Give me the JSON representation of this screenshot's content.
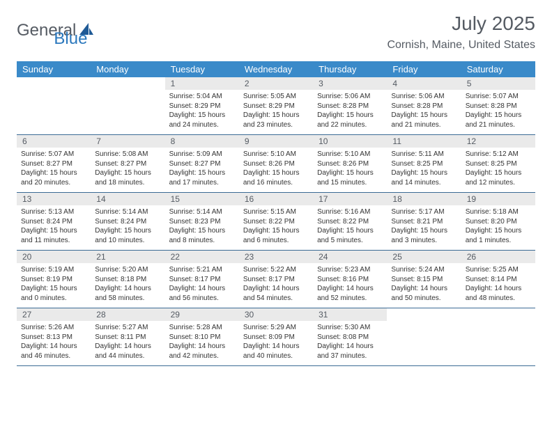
{
  "logo": {
    "text_general": "General",
    "text_blue": "Blue",
    "gray_color": "#555b63",
    "blue_color": "#2b78bd",
    "shape_color": "#1f5a96"
  },
  "title": "July 2025",
  "location": "Cornish, Maine, United States",
  "colors": {
    "header_bg": "#3a8ac9",
    "header_text": "#ffffff",
    "daynum_bg": "#eaeaea",
    "daynum_text": "#555b63",
    "row_border": "#3a6a94",
    "body_text": "#333333"
  },
  "weekdays": [
    "Sunday",
    "Monday",
    "Tuesday",
    "Wednesday",
    "Thursday",
    "Friday",
    "Saturday"
  ],
  "weeks": [
    [
      null,
      null,
      {
        "n": "1",
        "sr": "5:04 AM",
        "ss": "8:29 PM",
        "dh": "15",
        "dm": "24"
      },
      {
        "n": "2",
        "sr": "5:05 AM",
        "ss": "8:29 PM",
        "dh": "15",
        "dm": "23"
      },
      {
        "n": "3",
        "sr": "5:06 AM",
        "ss": "8:28 PM",
        "dh": "15",
        "dm": "22"
      },
      {
        "n": "4",
        "sr": "5:06 AM",
        "ss": "8:28 PM",
        "dh": "15",
        "dm": "21"
      },
      {
        "n": "5",
        "sr": "5:07 AM",
        "ss": "8:28 PM",
        "dh": "15",
        "dm": "21"
      }
    ],
    [
      {
        "n": "6",
        "sr": "5:07 AM",
        "ss": "8:27 PM",
        "dh": "15",
        "dm": "20"
      },
      {
        "n": "7",
        "sr": "5:08 AM",
        "ss": "8:27 PM",
        "dh": "15",
        "dm": "18"
      },
      {
        "n": "8",
        "sr": "5:09 AM",
        "ss": "8:27 PM",
        "dh": "15",
        "dm": "17"
      },
      {
        "n": "9",
        "sr": "5:10 AM",
        "ss": "8:26 PM",
        "dh": "15",
        "dm": "16"
      },
      {
        "n": "10",
        "sr": "5:10 AM",
        "ss": "8:26 PM",
        "dh": "15",
        "dm": "15"
      },
      {
        "n": "11",
        "sr": "5:11 AM",
        "ss": "8:25 PM",
        "dh": "15",
        "dm": "14"
      },
      {
        "n": "12",
        "sr": "5:12 AM",
        "ss": "8:25 PM",
        "dh": "15",
        "dm": "12"
      }
    ],
    [
      {
        "n": "13",
        "sr": "5:13 AM",
        "ss": "8:24 PM",
        "dh": "15",
        "dm": "11"
      },
      {
        "n": "14",
        "sr": "5:14 AM",
        "ss": "8:24 PM",
        "dh": "15",
        "dm": "10"
      },
      {
        "n": "15",
        "sr": "5:14 AM",
        "ss": "8:23 PM",
        "dh": "15",
        "dm": "8"
      },
      {
        "n": "16",
        "sr": "5:15 AM",
        "ss": "8:22 PM",
        "dh": "15",
        "dm": "6"
      },
      {
        "n": "17",
        "sr": "5:16 AM",
        "ss": "8:22 PM",
        "dh": "15",
        "dm": "5"
      },
      {
        "n": "18",
        "sr": "5:17 AM",
        "ss": "8:21 PM",
        "dh": "15",
        "dm": "3"
      },
      {
        "n": "19",
        "sr": "5:18 AM",
        "ss": "8:20 PM",
        "dh": "15",
        "dm": "1"
      }
    ],
    [
      {
        "n": "20",
        "sr": "5:19 AM",
        "ss": "8:19 PM",
        "dh": "15",
        "dm": "0"
      },
      {
        "n": "21",
        "sr": "5:20 AM",
        "ss": "8:18 PM",
        "dh": "14",
        "dm": "58"
      },
      {
        "n": "22",
        "sr": "5:21 AM",
        "ss": "8:17 PM",
        "dh": "14",
        "dm": "56"
      },
      {
        "n": "23",
        "sr": "5:22 AM",
        "ss": "8:17 PM",
        "dh": "14",
        "dm": "54"
      },
      {
        "n": "24",
        "sr": "5:23 AM",
        "ss": "8:16 PM",
        "dh": "14",
        "dm": "52"
      },
      {
        "n": "25",
        "sr": "5:24 AM",
        "ss": "8:15 PM",
        "dh": "14",
        "dm": "50"
      },
      {
        "n": "26",
        "sr": "5:25 AM",
        "ss": "8:14 PM",
        "dh": "14",
        "dm": "48"
      }
    ],
    [
      {
        "n": "27",
        "sr": "5:26 AM",
        "ss": "8:13 PM",
        "dh": "14",
        "dm": "46"
      },
      {
        "n": "28",
        "sr": "5:27 AM",
        "ss": "8:11 PM",
        "dh": "14",
        "dm": "44"
      },
      {
        "n": "29",
        "sr": "5:28 AM",
        "ss": "8:10 PM",
        "dh": "14",
        "dm": "42"
      },
      {
        "n": "30",
        "sr": "5:29 AM",
        "ss": "8:09 PM",
        "dh": "14",
        "dm": "40"
      },
      {
        "n": "31",
        "sr": "5:30 AM",
        "ss": "8:08 PM",
        "dh": "14",
        "dm": "37"
      },
      null,
      null
    ]
  ],
  "labels": {
    "sunrise": "Sunrise:",
    "sunset": "Sunset:",
    "daylight": "Daylight:",
    "hours": "hours",
    "and": "and",
    "minutes": "minutes."
  }
}
